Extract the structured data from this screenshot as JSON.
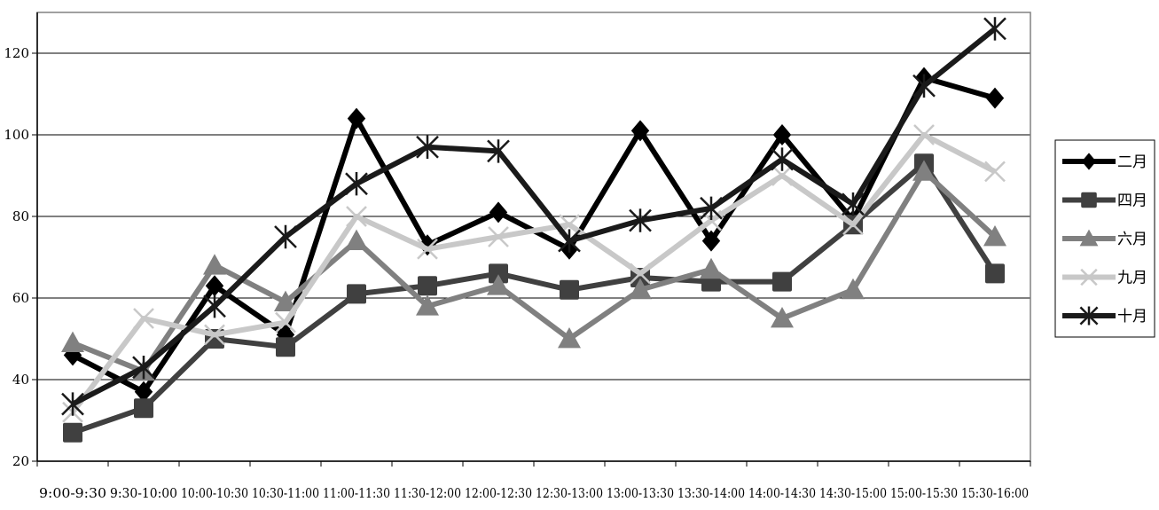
{
  "chart_data": {
    "type": "line",
    "title": "",
    "xlabel": "",
    "ylabel": "",
    "ylim": [
      20,
      130
    ],
    "y_ticks": [
      20,
      40,
      60,
      80,
      100,
      120
    ],
    "grid": "horizontal",
    "legend_position": "right",
    "categories": [
      "9:00-9:30",
      "9:30-10:00",
      "10:00-10:30",
      "10:30-11:00",
      "11:00-11:30",
      "11:30-12:00",
      "12:00-12:30",
      "12:30-13:00",
      "13:00-13:30",
      "13:30-14:00",
      "14:00-14:30",
      "14:30-15:00",
      "15:00-15:30",
      "15:30-16:00"
    ],
    "series": [
      {
        "name": "二月",
        "color": "#000000",
        "marker": "diamond",
        "values": [
          46,
          37,
          63,
          51,
          104,
          73,
          81,
          72,
          101,
          74,
          100,
          79,
          114,
          109
        ]
      },
      {
        "name": "四月",
        "color": "#404040",
        "marker": "square",
        "values": [
          27,
          33,
          50,
          48,
          61,
          63,
          66,
          62,
          65,
          64,
          64,
          78,
          93,
          66
        ]
      },
      {
        "name": "六月",
        "color": "#808080",
        "marker": "triangle",
        "values": [
          49,
          42,
          68,
          59,
          74,
          58,
          63,
          50,
          62,
          67,
          55,
          62,
          91,
          75
        ]
      },
      {
        "name": "九月",
        "color": "#c8c8c8",
        "marker": "x",
        "values": [
          32,
          55,
          51,
          54,
          80,
          72,
          75,
          78,
          66,
          79,
          90,
          78,
          100,
          91
        ]
      },
      {
        "name": "十月",
        "color": "#1a1a1a",
        "marker": "star",
        "values": [
          34,
          43,
          58,
          75,
          88,
          97,
          96,
          74,
          79,
          82,
          94,
          83,
          112,
          126
        ]
      }
    ]
  }
}
